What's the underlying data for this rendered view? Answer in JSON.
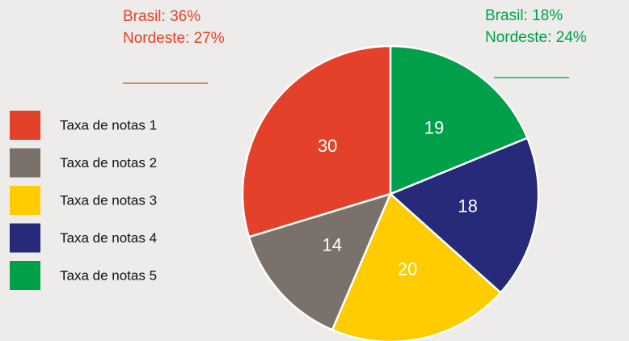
{
  "chart_data": {
    "type": "pie",
    "categories": [
      "Taxa de notas 1",
      "Taxa de notas 2",
      "Taxa de notas 3",
      "Taxa de notas 4",
      "Taxa de notas 5"
    ],
    "values": [
      30,
      14,
      20,
      18,
      19
    ],
    "colors": [
      "#e4412a",
      "#7a716b",
      "#ffcc00",
      "#262a78",
      "#00a04a"
    ],
    "annotations": [
      {
        "lines": [
          "Brasil: 36%",
          "Nordeste: 27%"
        ],
        "color": "#e4412a"
      },
      {
        "lines": [
          "Brasil: 18%",
          "Nordeste: 24%"
        ],
        "color": "#00a04a"
      }
    ],
    "legend": "left"
  }
}
